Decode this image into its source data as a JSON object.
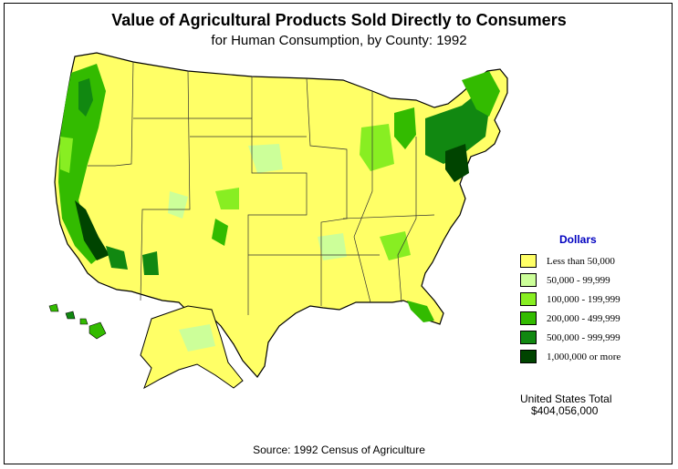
{
  "title": "Value of Agricultural Products Sold Directly to Consumers",
  "subtitle": "for Human Consumption, by County:  1992",
  "legend": {
    "title": "Dollars",
    "items": [
      {
        "label": "Less than 50,000",
        "color": "#ffff66"
      },
      {
        "label": "50,000 - 99,999",
        "color": "#ccff99"
      },
      {
        "label": "100,000 - 199,999",
        "color": "#88ee22"
      },
      {
        "label": "200,000 - 499,999",
        "color": "#33bb00"
      },
      {
        "label": "500,000 - 999,999",
        "color": "#118811"
      },
      {
        "label": "1,000,000 or more",
        "color": "#004400"
      }
    ]
  },
  "total": {
    "label": "United States Total",
    "value": "$404,056,000"
  },
  "source": "Source:  1992 Census of Agriculture",
  "colors": {
    "border": "#000000",
    "state_line": "#333333"
  }
}
